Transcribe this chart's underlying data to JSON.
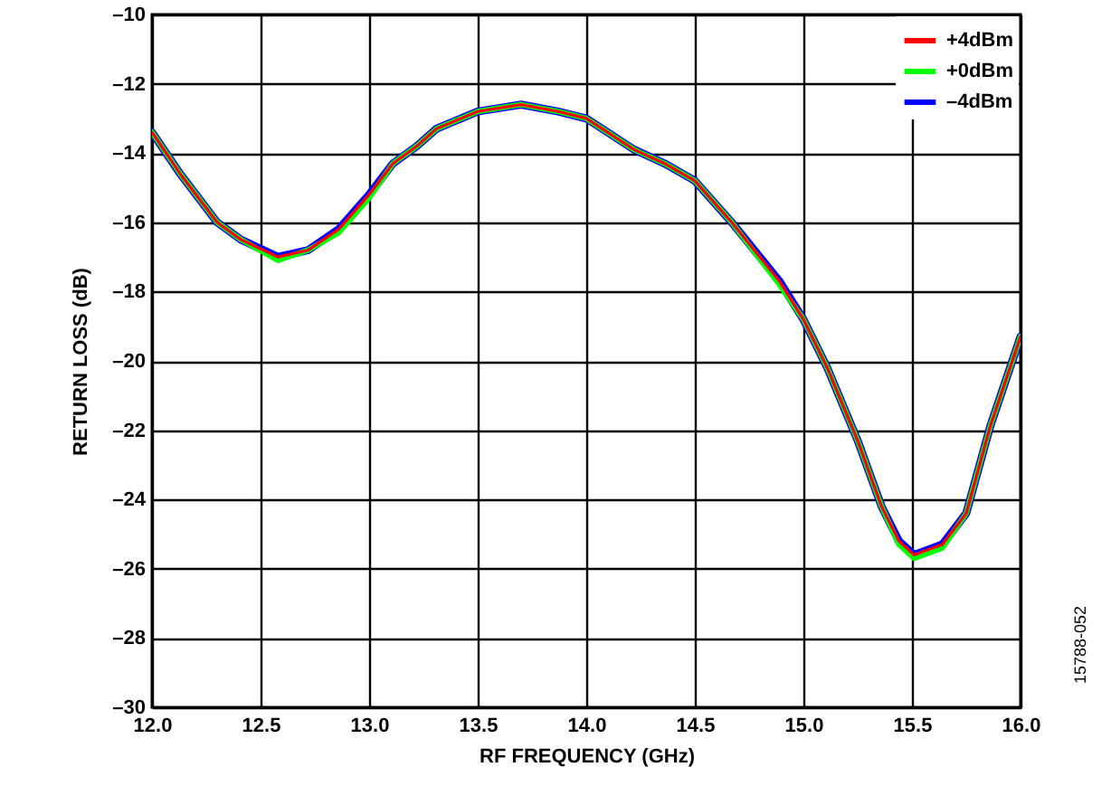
{
  "chart_data": {
    "type": "line",
    "xlabel": "RF FREQUENCY (GHz)",
    "ylabel": "RETURN LOSS (dB)",
    "x": [
      12.0,
      12.13,
      12.3,
      12.41,
      12.58,
      12.72,
      12.86,
      13.0,
      13.11,
      13.22,
      13.31,
      13.5,
      13.7,
      13.87,
      14.0,
      14.22,
      14.36,
      14.5,
      14.67,
      14.89,
      15.0,
      15.11,
      15.25,
      15.36,
      15.44,
      15.51,
      15.64,
      15.75,
      15.86,
      16.0
    ],
    "series": [
      {
        "name": "+4dBm",
        "color": "#ff0000",
        "values": [
          -13.4,
          -14.6,
          -16.0,
          -16.5,
          -17.0,
          -16.8,
          -16.2,
          -15.2,
          -14.3,
          -13.8,
          -13.3,
          -12.8,
          -12.6,
          -12.8,
          -13.0,
          -13.9,
          -14.3,
          -14.8,
          -16.0,
          -17.7,
          -18.8,
          -20.2,
          -22.3,
          -24.2,
          -25.2,
          -25.6,
          -25.3,
          -24.4,
          -21.9,
          -19.3
        ]
      },
      {
        "name": "+0dBm",
        "color": "#00ff00",
        "values": [
          -13.4,
          -14.6,
          -16.0,
          -16.5,
          -17.1,
          -16.8,
          -16.3,
          -15.3,
          -14.3,
          -13.8,
          -13.3,
          -12.8,
          -12.6,
          -12.8,
          -13.0,
          -13.9,
          -14.3,
          -14.8,
          -16.0,
          -17.8,
          -18.8,
          -20.2,
          -22.3,
          -24.2,
          -25.3,
          -25.7,
          -25.4,
          -24.4,
          -21.9,
          -19.3
        ]
      },
      {
        "name": "–4dBm",
        "color": "#0000ff",
        "values": [
          -13.4,
          -14.6,
          -16.0,
          -16.5,
          -17.0,
          -16.8,
          -16.2,
          -15.2,
          -14.3,
          -13.8,
          -13.3,
          -12.8,
          -12.6,
          -12.8,
          -13.0,
          -13.9,
          -14.3,
          -14.8,
          -16.0,
          -17.7,
          -18.8,
          -20.2,
          -22.3,
          -24.2,
          -25.2,
          -25.6,
          -25.3,
          -24.4,
          -21.9,
          -19.3
        ]
      }
    ],
    "xlim": [
      12.0,
      16.0
    ],
    "xticks": [
      {
        "value": 12,
        "label": "12.0"
      },
      {
        "value": 12.5,
        "label": "12.5"
      },
      {
        "value": 13,
        "label": "13.0"
      },
      {
        "value": 13.5,
        "label": "13.5"
      },
      {
        "value": 14,
        "label": "14.0"
      },
      {
        "value": 14.5,
        "label": "14.5"
      },
      {
        "value": 15,
        "label": "15.0"
      },
      {
        "value": 15.5,
        "label": "15.5"
      },
      {
        "value": 16,
        "label": "16.0"
      }
    ],
    "ylim": [
      -30,
      -10
    ],
    "yticks": [
      {
        "value": -30,
        "label": "–30"
      },
      {
        "value": -28,
        "label": "–28"
      },
      {
        "value": -26,
        "label": "–26"
      },
      {
        "value": -24,
        "label": "–24"
      },
      {
        "value": -22,
        "label": "–22"
      },
      {
        "value": -20,
        "label": "–20"
      },
      {
        "value": -18,
        "label": "–18"
      },
      {
        "value": -16,
        "label": "–16"
      },
      {
        "value": -14,
        "label": "–14"
      },
      {
        "value": -12,
        "label": "–12"
      },
      {
        "value": -10,
        "label": "–10"
      }
    ],
    "grid": true,
    "legend": "top right",
    "annotations": [
      "15788-052"
    ]
  }
}
